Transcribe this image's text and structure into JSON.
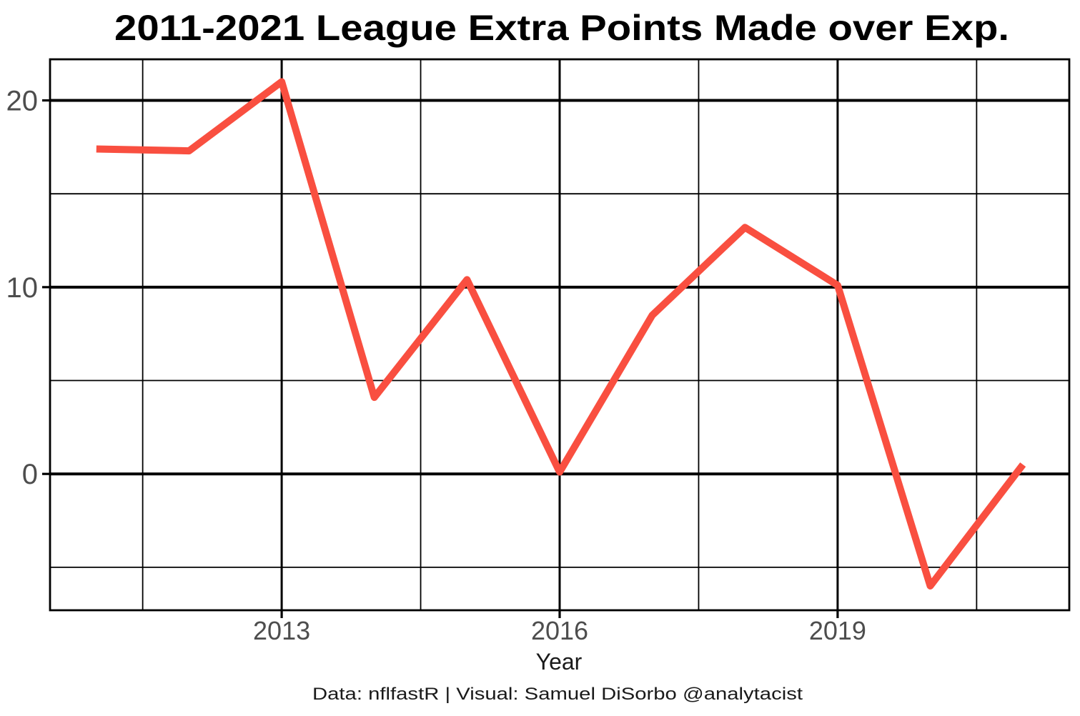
{
  "chart_data": {
    "type": "line",
    "title": "2011-2021 League Extra Points Made over Exp.",
    "xlabel": "Year",
    "ylabel": "",
    "caption": "Data: nflfastR | Visual: Samuel DiSorbo @analytacist",
    "x": [
      2011,
      2012,
      2013,
      2014,
      2015,
      2016,
      2017,
      2018,
      2019,
      2020,
      2021
    ],
    "values": [
      17.4,
      17.3,
      21.0,
      4.1,
      10.4,
      0.1,
      8.5,
      13.2,
      10.1,
      -6.0,
      0.5
    ],
    "xlim": [
      2010.5,
      2021.5
    ],
    "ylim": [
      -7.3,
      22.2
    ],
    "x_major_gridlines": [
      2013,
      2016,
      2019
    ],
    "x_minor_gridlines": [
      2011.5,
      2014.5,
      2017.5,
      2020.5
    ],
    "y_major_gridlines": [
      0,
      10,
      20
    ],
    "y_minor_gridlines": [
      -5,
      5,
      15
    ],
    "x_ticks": [
      {
        "value": 2013,
        "label": "2013"
      },
      {
        "value": 2016,
        "label": "2016"
      },
      {
        "value": 2019,
        "label": "2019"
      }
    ],
    "y_ticks": [
      {
        "value": 0,
        "label": "0"
      },
      {
        "value": 10,
        "label": "10"
      },
      {
        "value": 20,
        "label": "20"
      }
    ],
    "grid": true,
    "legend": false,
    "colors": {
      "line": "#F94F40",
      "grid": "#000000",
      "panel_border": "#000000",
      "tick_mark": "#000000",
      "tick_label": "#4d4d4d",
      "text": "#1a1a1a",
      "title": "#000000",
      "background": "#ffffff"
    }
  }
}
